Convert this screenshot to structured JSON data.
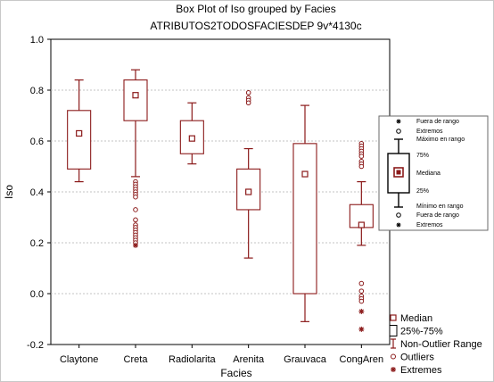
{
  "chart_data": {
    "type": "boxplot",
    "title": "Box Plot of Iso grouped by  Facies",
    "subtitle": "ATRIBUTOS2TODOSFACIESDEP 9v*4130c",
    "xlabel": "Facies",
    "ylabel": "Iso",
    "ylim": [
      -0.2,
      1.0
    ],
    "yticks": [
      "-0.2",
      "0.0",
      "0.2",
      "0.4",
      "0.6",
      "0.8",
      "1.0"
    ],
    "categories": [
      "Claytone",
      "Creta",
      "Radiolarita",
      "Arenita",
      "Grauvaca",
      "CongAren"
    ],
    "boxes": [
      {
        "median": 0.63,
        "q1": 0.49,
        "q3": 0.72,
        "min": 0.44,
        "max": 0.84,
        "outliers": [],
        "extremes": []
      },
      {
        "median": 0.78,
        "q1": 0.68,
        "q3": 0.84,
        "min": 0.46,
        "max": 0.88,
        "outliers": [
          0.44,
          0.43,
          0.42,
          0.41,
          0.4,
          0.39,
          0.38,
          0.33,
          0.29,
          0.27,
          0.26,
          0.25,
          0.24,
          0.23,
          0.22,
          0.21,
          0.2
        ],
        "extremes": [
          0.19
        ]
      },
      {
        "median": 0.61,
        "q1": 0.55,
        "q3": 0.68,
        "min": 0.51,
        "max": 0.75,
        "outliers": [],
        "extremes": []
      },
      {
        "median": 0.4,
        "q1": 0.33,
        "q3": 0.49,
        "min": 0.14,
        "max": 0.57,
        "outliers": [
          0.79,
          0.77,
          0.76,
          0.75
        ],
        "extremes": []
      },
      {
        "median": 0.47,
        "q1": 0.0,
        "q3": 0.59,
        "min": -0.11,
        "max": 0.74,
        "outliers": [],
        "extremes": []
      },
      {
        "median": 0.27,
        "q1": 0.26,
        "q3": 0.35,
        "min": 0.19,
        "max": 0.44,
        "outliers": [
          0.59,
          0.58,
          0.57,
          0.56,
          0.55,
          0.54,
          0.52,
          0.51,
          0.5,
          0.04,
          0.01,
          -0.01,
          -0.02,
          -0.03
        ],
        "extremes": [
          -0.07,
          -0.14
        ]
      }
    ],
    "legend": {
      "position": "bottom-right",
      "items": [
        "Median",
        "25%-75%",
        "Non-Outlier Range",
        "Outliers",
        "Extremes"
      ]
    },
    "key_inset": {
      "labels": [
        "Fuera de rango",
        "Extremos",
        "Máximo en rango",
        "75%",
        "Mediana",
        "25%",
        "Mínimo en rango",
        "Fuera de rango",
        "Extremos"
      ]
    },
    "colors": {
      "marks": "#8b1a1a",
      "box_fill": "#ffffff",
      "frame": "#000000"
    }
  }
}
